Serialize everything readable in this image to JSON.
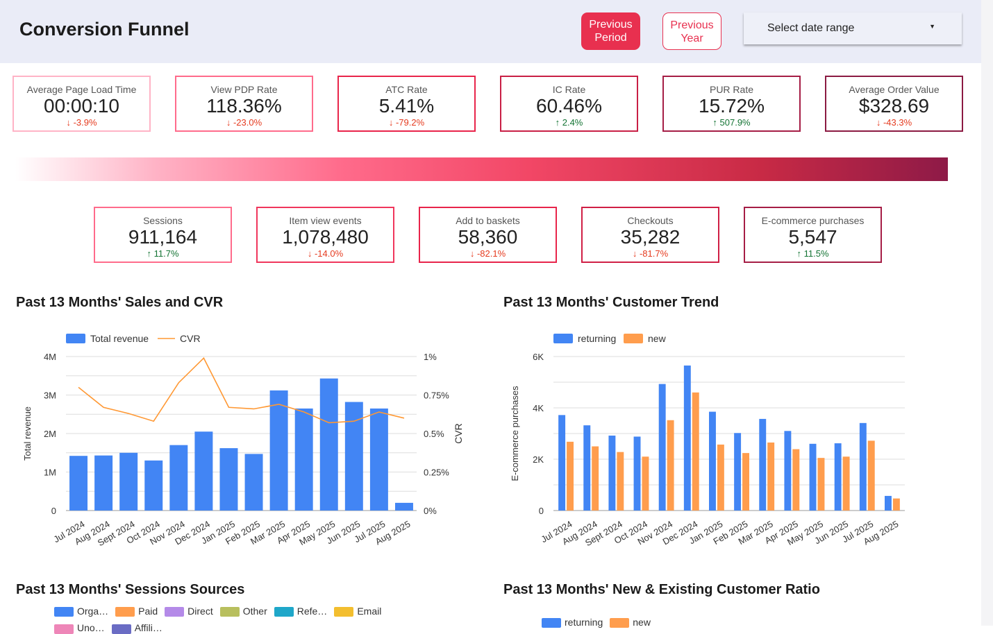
{
  "header": {
    "title": "Conversion Funnel",
    "previous_period": "Previous Period",
    "previous_year": "Previous Year",
    "date_range": "Select date range"
  },
  "kpis_top": [
    {
      "label": "Average Page Load Time",
      "value": "00:00:10",
      "delta": "-3.9%",
      "dir": "down",
      "color": "#ffb3c6"
    },
    {
      "label": "View PDP Rate",
      "value": "118.36%",
      "delta": "-23.0%",
      "dir": "down",
      "color": "#ff6b8b"
    },
    {
      "label": "ATC Rate",
      "value": "5.41%",
      "delta": "-79.2%",
      "dir": "down",
      "color": "#e8244a"
    },
    {
      "label": "IC Rate",
      "value": "60.46%",
      "delta": "2.4%",
      "dir": "up",
      "color": "#c81f45"
    },
    {
      "label": "PUR Rate",
      "value": "15.72%",
      "delta": "507.9%",
      "dir": "up",
      "color": "#a51d45"
    },
    {
      "label": "Average Order Value",
      "value": "$328.69",
      "delta": "-43.3%",
      "dir": "down",
      "color": "#8b1a42"
    }
  ],
  "kpis_bottom": [
    {
      "label": "Sessions",
      "value": "911,164",
      "delta": "11.7%",
      "dir": "up",
      "color": "#ff6b8b"
    },
    {
      "label": "Item view events",
      "value": "1,078,480",
      "delta": "-14.0%",
      "dir": "down",
      "color": "#f0365c"
    },
    {
      "label": "Add to baskets",
      "value": "58,360",
      "delta": "-82.1%",
      "dir": "down",
      "color": "#e8244a"
    },
    {
      "label": "Checkouts",
      "value": "35,282",
      "delta": "-81.7%",
      "dir": "down",
      "color": "#d01f45"
    },
    {
      "label": "E-commerce purchases",
      "value": "5,547",
      "delta": "11.5%",
      "dir": "up",
      "color": "#a51d45"
    }
  ],
  "sections": {
    "sales": "Past 13 Months' Sales and CVR",
    "customer": "Past 13 Months' Customer Trend",
    "sources": "Past 13 Months' Sessions Sources",
    "ratio": "Past 13 Months' New & Existing Customer Ratio"
  },
  "chart_data": [
    {
      "type": "bar+line",
      "categories": [
        "Jul 2024",
        "Aug 2024",
        "Sept 2024",
        "Oct 2024",
        "Nov 2024",
        "Dec 2024",
        "Jan 2025",
        "Feb 2025",
        "Mar 2025",
        "Apr 2025",
        "May 2025",
        "Jun 2025",
        "Jul 2025",
        "Aug 2025"
      ],
      "series": [
        {
          "name": "Total revenue",
          "type": "bar",
          "axis": "left",
          "color": "#4285f4",
          "values": [
            1420000,
            1430000,
            1500000,
            1300000,
            1700000,
            2050000,
            1620000,
            1470000,
            3120000,
            2650000,
            3430000,
            2820000,
            2650000,
            200000
          ]
        },
        {
          "name": "CVR",
          "type": "line",
          "axis": "right",
          "color": "#ff9833",
          "values": [
            0.8,
            0.67,
            0.63,
            0.58,
            0.83,
            0.99,
            0.67,
            0.66,
            0.69,
            0.64,
            0.57,
            0.58,
            0.64,
            0.6
          ]
        }
      ],
      "ylabel": "Total revenue",
      "y2label": "CVR",
      "ylim": [
        0,
        4000000
      ],
      "y2lim": [
        0,
        1
      ],
      "yticks": [
        "0",
        "1M",
        "2M",
        "3M",
        "4M"
      ],
      "y2ticks": [
        "0%",
        "0.25%",
        "0.5%",
        "0.75%",
        "1%"
      ],
      "grid": true,
      "legend": "top-left"
    },
    {
      "type": "bar",
      "categories": [
        "Jul 2024",
        "Aug 2024",
        "Sept 2024",
        "Oct 2024",
        "Nov 2024",
        "Dec 2024",
        "Jan 2025",
        "Feb 2025",
        "Mar 2025",
        "Apr 2025",
        "May 2025",
        "Jun 2025",
        "Jul 2025",
        "Aug 2025"
      ],
      "series": [
        {
          "name": "returning",
          "color": "#4285f4",
          "values": [
            3720,
            3320,
            2920,
            2880,
            4930,
            5650,
            3850,
            3020,
            3570,
            3100,
            2600,
            2620,
            3410,
            570
          ]
        },
        {
          "name": "new",
          "color": "#ff9d4d",
          "values": [
            2680,
            2500,
            2280,
            2100,
            3520,
            4600,
            2570,
            2240,
            2650,
            2390,
            2050,
            2100,
            2720,
            470
          ]
        }
      ],
      "ylabel": "E-commerce purchases",
      "ylim": [
        0,
        6000
      ],
      "yticks": [
        "0",
        "2K",
        "4K",
        "6K"
      ],
      "grid": true,
      "legend": "top-left"
    }
  ],
  "sources_legend": [
    {
      "label": "Orga…",
      "color": "#4285f4"
    },
    {
      "label": "Paid",
      "color": "#ff9d4d"
    },
    {
      "label": "Direct",
      "color": "#b48ae8"
    },
    {
      "label": "Other",
      "color": "#b8bf5e"
    },
    {
      "label": "Refe…",
      "color": "#1fa7c9"
    },
    {
      "label": "Email",
      "color": "#f3be2f"
    },
    {
      "label": "Uno…",
      "color": "#ee86b8"
    },
    {
      "label": "Affili…",
      "color": "#6a6cc4"
    }
  ],
  "ratio_legend": [
    {
      "label": "returning",
      "color": "#4285f4"
    },
    {
      "label": "new",
      "color": "#ff9d4d"
    }
  ]
}
